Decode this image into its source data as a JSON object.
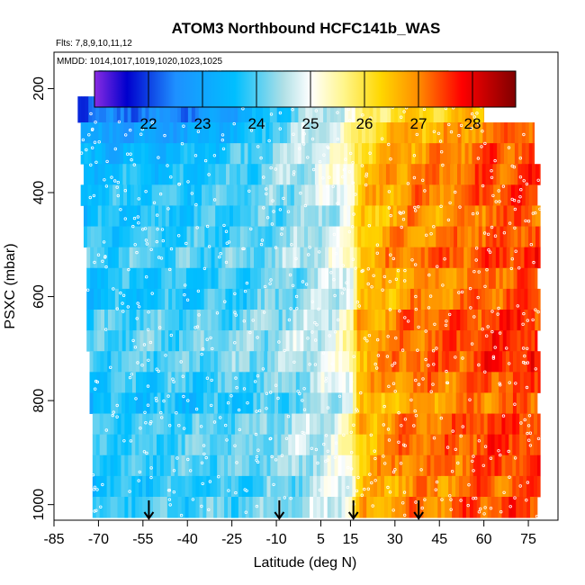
{
  "chart_data": {
    "type": "heatmap",
    "title": "ATOM3 Northbound HCFC141b_WAS",
    "subtitle_flights": "Flts: 7,8,9,10,11,12",
    "subtitle_dates": "MMDD: 1014,1017,1019,1020,1023,1025",
    "xlabel": "Latitude (deg N)",
    "ylabel": "PSXC (mbar)",
    "xlim": [
      -85,
      85
    ],
    "ylim": [
      1030,
      130
    ],
    "x_ticks": [
      -85,
      -70,
      -55,
      -40,
      -25,
      -10,
      5,
      15,
      30,
      45,
      60,
      75
    ],
    "y_ticks": [
      200,
      400,
      600,
      800,
      1000
    ],
    "colorbar": {
      "min": 21.0,
      "max": 28.8,
      "ticks": [
        22,
        23,
        24,
        25,
        26,
        27,
        28
      ],
      "stops": [
        [
          21.0,
          "#8a2be2"
        ],
        [
          21.6,
          "#0000cd"
        ],
        [
          22.5,
          "#1e90ff"
        ],
        [
          23.6,
          "#00bfff"
        ],
        [
          24.5,
          "#b0e0e6"
        ],
        [
          25.0,
          "#ffffff"
        ],
        [
          25.6,
          "#fff68f"
        ],
        [
          26.3,
          "#ffd700"
        ],
        [
          27.0,
          "#ff8c00"
        ],
        [
          27.8,
          "#ff0000"
        ],
        [
          28.8,
          "#800000"
        ]
      ]
    },
    "arrow_latitudes": [
      -53,
      -9,
      16,
      38
    ],
    "profile": {
      "lat": [
        -80,
        -70,
        -60,
        -50,
        -40,
        -30,
        -20,
        -10,
        0,
        5,
        10,
        15,
        17,
        20,
        25,
        30,
        35,
        40,
        45,
        50,
        55,
        60,
        65,
        70,
        75,
        80
      ],
      "val": [
        23.6,
        23.7,
        23.8,
        23.8,
        23.8,
        23.9,
        24.0,
        24.2,
        24.4,
        24.6,
        24.8,
        25.2,
        26.4,
        26.5,
        26.7,
        26.9,
        27.0,
        27.0,
        27.0,
        27.1,
        27.2,
        27.3,
        27.3,
        27.4,
        27.4,
        27.3
      ]
    },
    "upper_profile": {
      "lat": [
        -80,
        -60,
        -40,
        -20,
        -10,
        0,
        10,
        18,
        25,
        30,
        40,
        50,
        60,
        70,
        75
      ],
      "val": [
        22.2,
        22.3,
        22.5,
        23.2,
        24.0,
        24.5,
        24.9,
        25.5,
        26.0,
        26.2,
        26.3,
        26.6,
        26.8,
        27.0,
        27.1
      ]
    },
    "bands": [
      {
        "p_top": 165,
        "p_bot": 215,
        "lat_min": -70,
        "lat_max": 48
      },
      {
        "p_top": 215,
        "p_bot": 265,
        "lat_min": -77,
        "lat_max": 60
      },
      {
        "p_top": 265,
        "p_bot": 305,
        "lat_min": -76,
        "lat_max": 77
      },
      {
        "p_top": 305,
        "p_bot": 345,
        "lat_min": -76,
        "lat_max": 77
      },
      {
        "p_top": 345,
        "p_bot": 385,
        "lat_min": -75,
        "lat_max": 79
      },
      {
        "p_top": 385,
        "p_bot": 425,
        "lat_min": -76,
        "lat_max": 78
      },
      {
        "p_top": 425,
        "p_bot": 465,
        "lat_min": -75,
        "lat_max": 79
      },
      {
        "p_top": 465,
        "p_bot": 505,
        "lat_min": -75,
        "lat_max": 79
      },
      {
        "p_top": 505,
        "p_bot": 545,
        "lat_min": -74,
        "lat_max": 79
      },
      {
        "p_top": 545,
        "p_bot": 585,
        "lat_min": -74,
        "lat_max": 78
      },
      {
        "p_top": 585,
        "p_bot": 625,
        "lat_min": -74,
        "lat_max": 79
      },
      {
        "p_top": 625,
        "p_bot": 665,
        "lat_min": -74,
        "lat_max": 79
      },
      {
        "p_top": 665,
        "p_bot": 705,
        "lat_min": -74,
        "lat_max": 78
      },
      {
        "p_top": 705,
        "p_bot": 745,
        "lat_min": -73,
        "lat_max": 79
      },
      {
        "p_top": 745,
        "p_bot": 785,
        "lat_min": -73,
        "lat_max": 79
      },
      {
        "p_top": 785,
        "p_bot": 825,
        "lat_min": -73,
        "lat_max": 78
      },
      {
        "p_top": 825,
        "p_bot": 865,
        "lat_min": -72,
        "lat_max": 79
      },
      {
        "p_top": 865,
        "p_bot": 905,
        "lat_min": -72,
        "lat_max": 79
      },
      {
        "p_top": 905,
        "p_bot": 945,
        "lat_min": -72,
        "lat_max": 79
      },
      {
        "p_top": 945,
        "p_bot": 985,
        "lat_min": -72,
        "lat_max": 79
      },
      {
        "p_top": 985,
        "p_bot": 1025,
        "lat_min": -72,
        "lat_max": 78
      }
    ]
  }
}
